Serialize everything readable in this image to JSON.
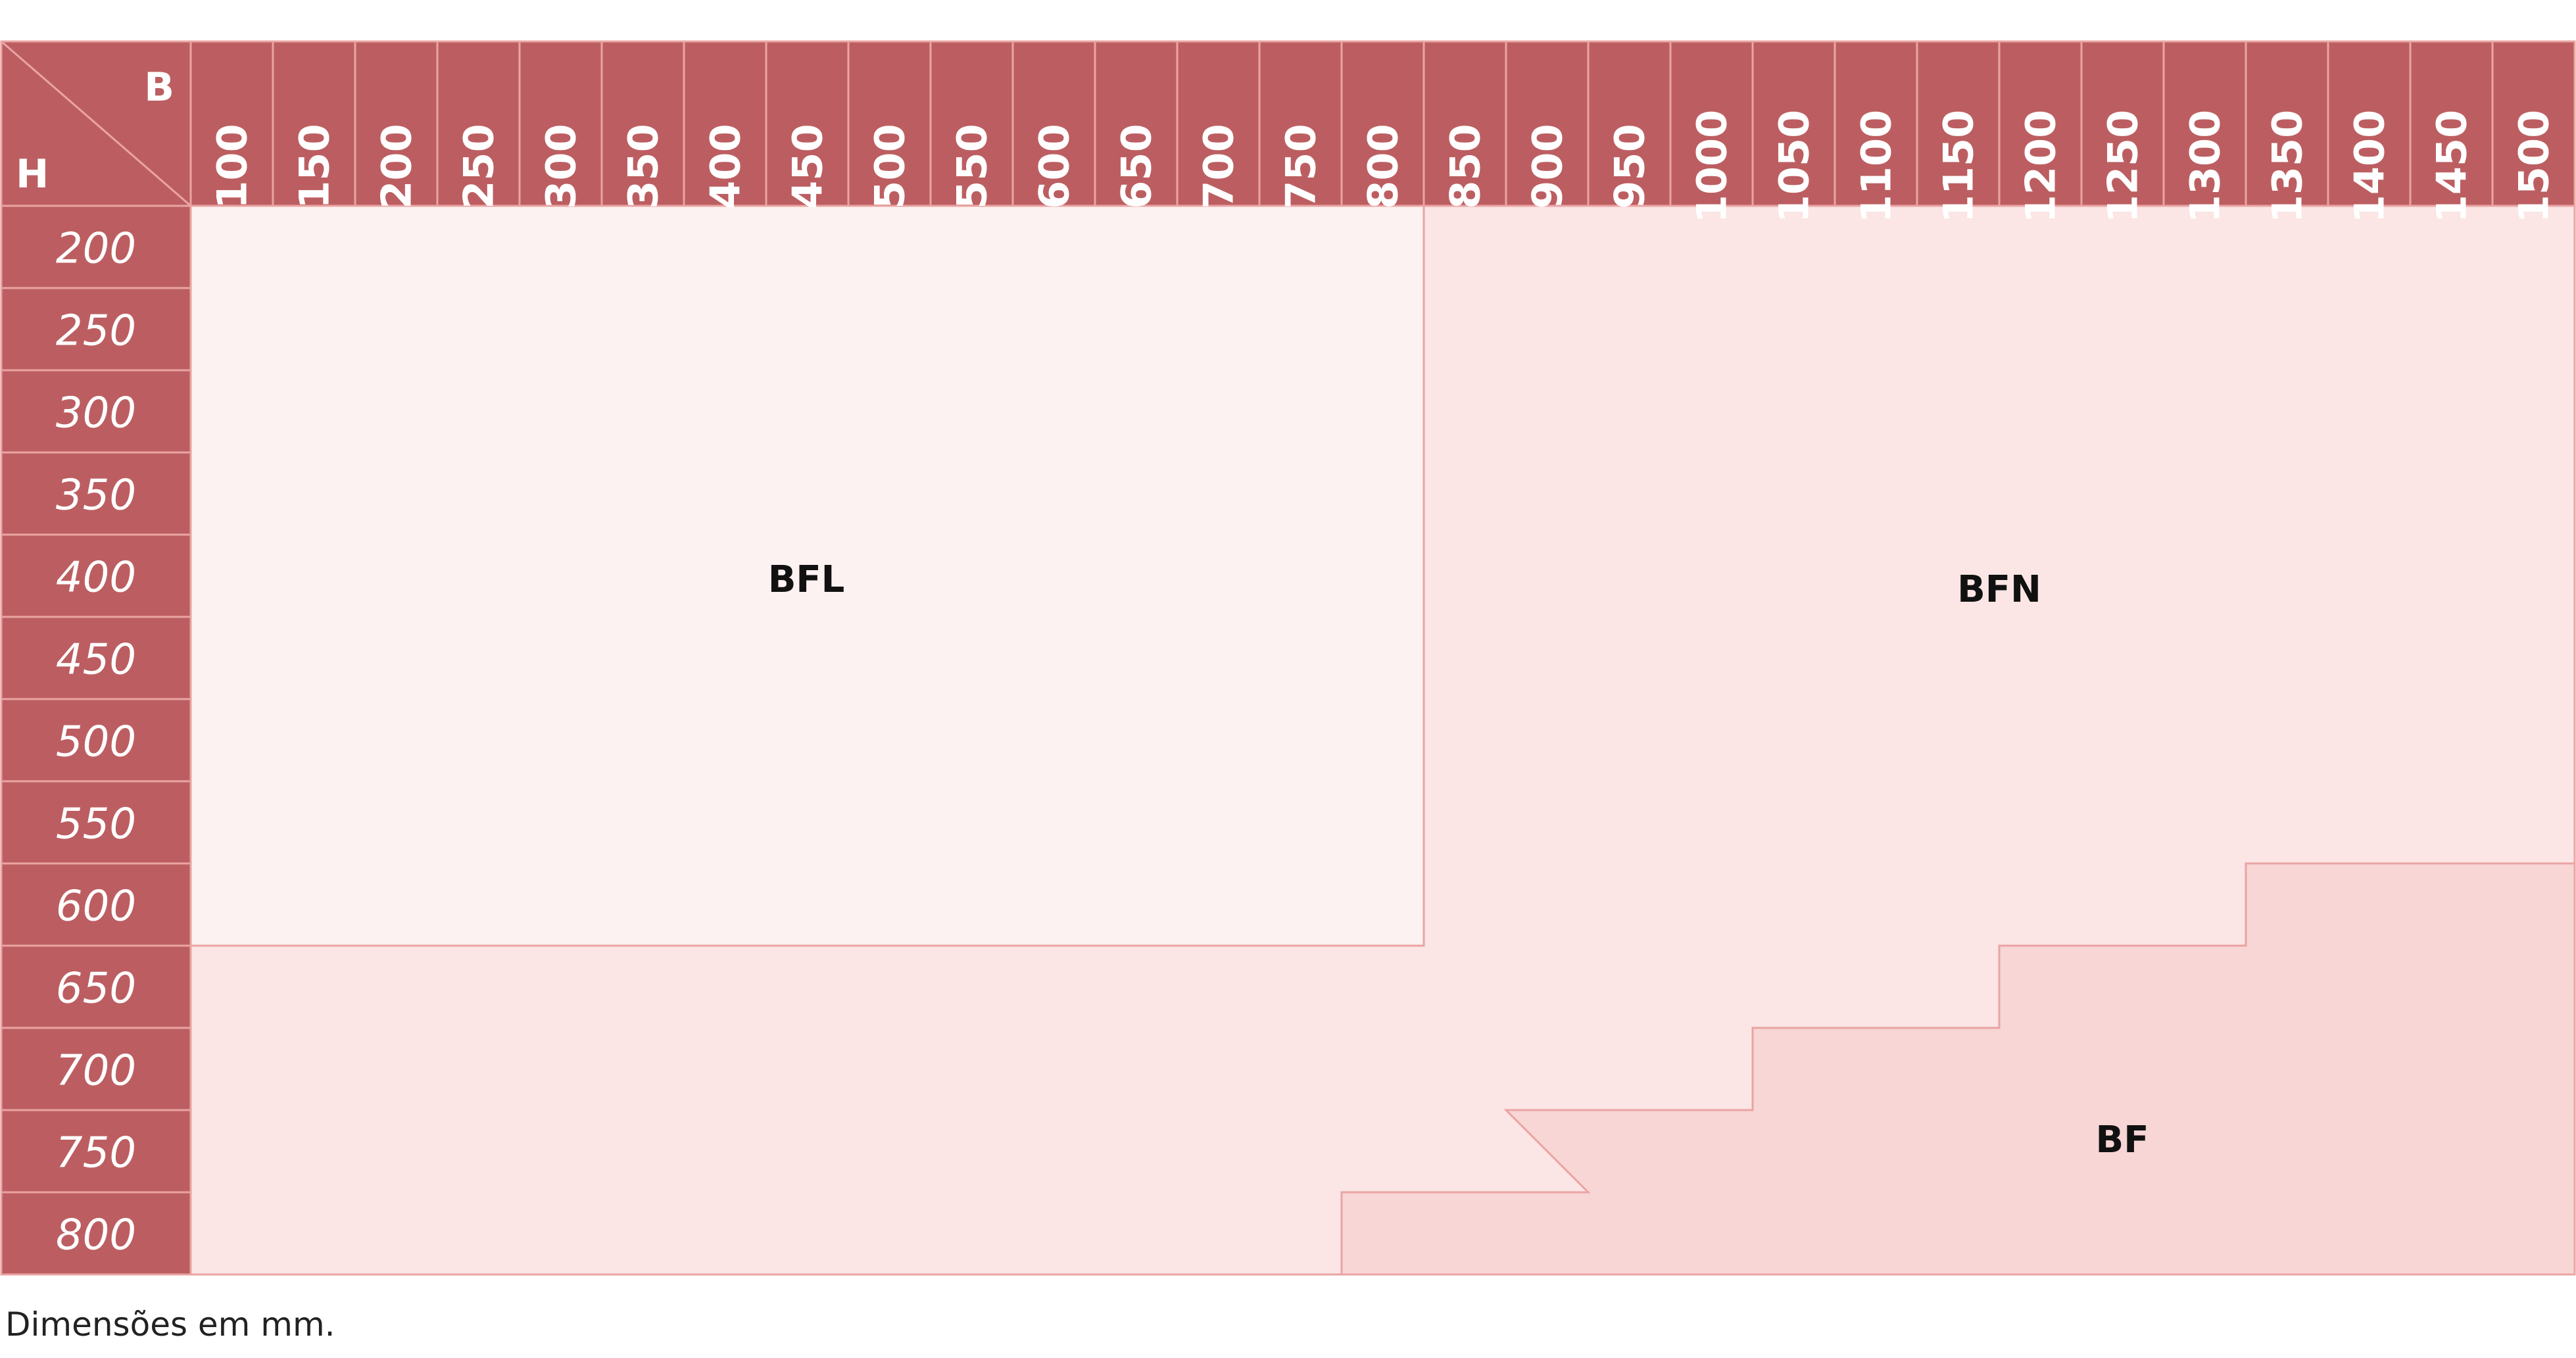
{
  "table": {
    "corner": {
      "column_axis": "B",
      "row_axis": "H"
    },
    "columns": [
      "100",
      "150",
      "200",
      "250",
      "300",
      "350",
      "400",
      "450",
      "500",
      "550",
      "600",
      "650",
      "700",
      "750",
      "800",
      "850",
      "900",
      "950",
      "1000",
      "1050",
      "1100",
      "1150",
      "1200",
      "1250",
      "1300",
      "1350",
      "1400",
      "1450",
      "1500"
    ],
    "rows": [
      "200",
      "250",
      "300",
      "350",
      "400",
      "450",
      "500",
      "550",
      "600",
      "650",
      "700",
      "750",
      "800"
    ],
    "regions": [
      {
        "label": "BFL",
        "B_range": [
          "100",
          "800"
        ],
        "H_range": [
          "200",
          "600"
        ],
        "color": "#fcf2f1"
      },
      {
        "label": "BFN",
        "color": "#fbe5e5"
      },
      {
        "label": "BF",
        "color": "#f7d6d5",
        "steps": [
          {
            "B_range": [
              "800",
              "900"
            ],
            "H_range": [
              "800",
              "800"
            ]
          },
          {
            "B_range": [
              "900",
              "1000"
            ],
            "H_range": [
              "750",
              "800"
            ]
          },
          {
            "B_range": [
              "1050",
              "1150"
            ],
            "H_range": [
              "700",
              "800"
            ]
          },
          {
            "B_range": [
              "1200",
              "1300"
            ],
            "H_range": [
              "650",
              "800"
            ]
          },
          {
            "B_range": [
              "1350",
              "1500"
            ],
            "H_range": [
              "600",
              "800"
            ]
          }
        ]
      }
    ],
    "colors": {
      "header_fill": "#bc5e61",
      "header_text": "#ffffff",
      "line": "#eaa4a3",
      "region_text": "#111111"
    }
  },
  "footnote": "Dimensões em mm."
}
